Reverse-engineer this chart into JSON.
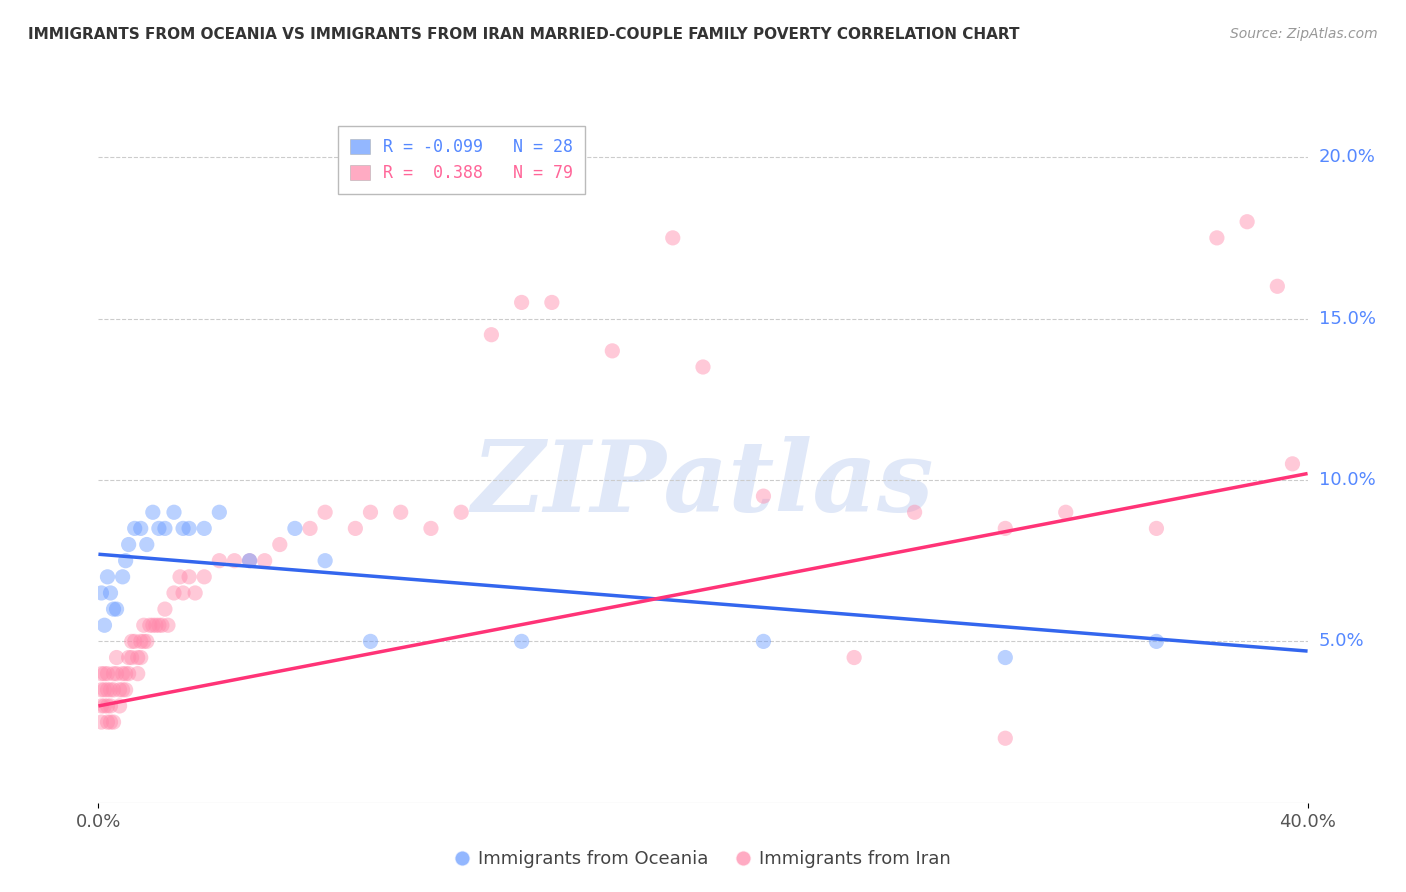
{
  "title": "IMMIGRANTS FROM OCEANIA VS IMMIGRANTS FROM IRAN MARRIED-COUPLE FAMILY POVERTY CORRELATION CHART",
  "source": "Source: ZipAtlas.com",
  "xmin": 0.0,
  "xmax": 0.4,
  "ymin": 0.0,
  "ymax": 0.21,
  "watermark": "ZIPatlas",
  "legend": [
    {
      "label": "R = -0.099   N = 28",
      "color": "#5588ff"
    },
    {
      "label": "R =  0.388   N = 79",
      "color": "#ff6699"
    }
  ],
  "legend_series": [
    "Immigrants from Oceania",
    "Immigrants from Iran"
  ],
  "blue_scatter_x": [
    0.001,
    0.002,
    0.003,
    0.004,
    0.005,
    0.006,
    0.008,
    0.009,
    0.01,
    0.012,
    0.014,
    0.016,
    0.018,
    0.02,
    0.022,
    0.025,
    0.028,
    0.03,
    0.035,
    0.04,
    0.05,
    0.065,
    0.075,
    0.09,
    0.14,
    0.22,
    0.3,
    0.35
  ],
  "blue_scatter_y": [
    0.065,
    0.055,
    0.07,
    0.065,
    0.06,
    0.06,
    0.07,
    0.075,
    0.08,
    0.085,
    0.085,
    0.08,
    0.09,
    0.085,
    0.085,
    0.09,
    0.085,
    0.085,
    0.085,
    0.09,
    0.075,
    0.085,
    0.075,
    0.05,
    0.05,
    0.05,
    0.045,
    0.05
  ],
  "pink_scatter_x": [
    0.001,
    0.001,
    0.001,
    0.001,
    0.002,
    0.002,
    0.002,
    0.003,
    0.003,
    0.003,
    0.003,
    0.004,
    0.004,
    0.004,
    0.005,
    0.005,
    0.005,
    0.006,
    0.006,
    0.007,
    0.007,
    0.008,
    0.008,
    0.009,
    0.009,
    0.01,
    0.01,
    0.011,
    0.011,
    0.012,
    0.013,
    0.013,
    0.014,
    0.014,
    0.015,
    0.015,
    0.016,
    0.017,
    0.018,
    0.019,
    0.02,
    0.021,
    0.022,
    0.023,
    0.025,
    0.027,
    0.028,
    0.03,
    0.032,
    0.035,
    0.04,
    0.045,
    0.05,
    0.055,
    0.06,
    0.07,
    0.075,
    0.085,
    0.09,
    0.1,
    0.11,
    0.12,
    0.13,
    0.14,
    0.15,
    0.17,
    0.19,
    0.2,
    0.22,
    0.25,
    0.27,
    0.3,
    0.32,
    0.35,
    0.37,
    0.38,
    0.39,
    0.395,
    0.3
  ],
  "pink_scatter_y": [
    0.04,
    0.035,
    0.03,
    0.025,
    0.04,
    0.035,
    0.03,
    0.04,
    0.035,
    0.03,
    0.025,
    0.035,
    0.03,
    0.025,
    0.04,
    0.035,
    0.025,
    0.045,
    0.04,
    0.035,
    0.03,
    0.04,
    0.035,
    0.04,
    0.035,
    0.045,
    0.04,
    0.05,
    0.045,
    0.05,
    0.045,
    0.04,
    0.05,
    0.045,
    0.055,
    0.05,
    0.05,
    0.055,
    0.055,
    0.055,
    0.055,
    0.055,
    0.06,
    0.055,
    0.065,
    0.07,
    0.065,
    0.07,
    0.065,
    0.07,
    0.075,
    0.075,
    0.075,
    0.075,
    0.08,
    0.085,
    0.09,
    0.085,
    0.09,
    0.09,
    0.085,
    0.09,
    0.145,
    0.155,
    0.155,
    0.14,
    0.175,
    0.135,
    0.095,
    0.045,
    0.09,
    0.085,
    0.09,
    0.085,
    0.175,
    0.18,
    0.16,
    0.105,
    0.02
  ],
  "blue_line_x": [
    0.0,
    0.4
  ],
  "blue_line_y": [
    0.077,
    0.047
  ],
  "pink_line_x": [
    0.0,
    0.4
  ],
  "pink_line_y": [
    0.03,
    0.102
  ],
  "blue_color": "#6699ff",
  "pink_color": "#ff88aa",
  "blue_line_color": "#3366ee",
  "pink_line_color": "#ff3377",
  "grid_color": "#cccccc",
  "background_color": "#ffffff",
  "watermark_color": "#e0e8f8"
}
